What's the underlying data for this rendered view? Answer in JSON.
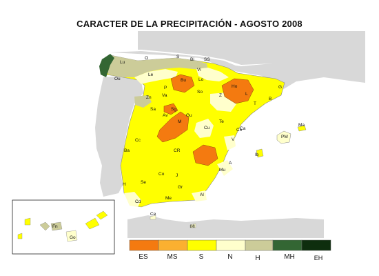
{
  "title": "CARACTER DE LA PRECIPITACIÓN - AGOSTO 2008",
  "colors": {
    "ES": "#f47a10",
    "MS": "#fbb030",
    "S": "#ffff00",
    "N": "#ffffcc",
    "H": "#cccc99",
    "MH": "#336633",
    "EH": "#0e2e0e",
    "land_other": "#d8d8d8",
    "sea": "#ffffff"
  },
  "legend": [
    {
      "code": "ES",
      "label": "ES"
    },
    {
      "code": "MS",
      "label": "MS"
    },
    {
      "code": "S",
      "label": "S"
    },
    {
      "code": "N",
      "label": "N"
    },
    {
      "code": "H",
      "label": "H"
    },
    {
      "code": "MH",
      "label": "MH"
    },
    {
      "code": "EH",
      "label": "EH"
    }
  ],
  "cities": [
    "Lu",
    "O",
    "S",
    "Bi",
    "SS",
    "Ou",
    "Le",
    "Bu",
    "Lo",
    "Vi",
    "P",
    "Ho",
    "So",
    "Zn",
    "Va",
    "Z",
    "L",
    "G",
    "Sa",
    "Sg",
    "Gu",
    "T",
    "B",
    "Av",
    "M",
    "Cu",
    "Te",
    "Ca",
    "Cs",
    "PM",
    "Ma",
    "Cc",
    "CR",
    "V",
    "Ba",
    "Co",
    "J",
    "Mu",
    "A",
    "Se",
    "Gr",
    "Al",
    "H",
    "Cd",
    "Me",
    "Ce",
    "Ml",
    "Ib",
    "Fn",
    "Go"
  ]
}
